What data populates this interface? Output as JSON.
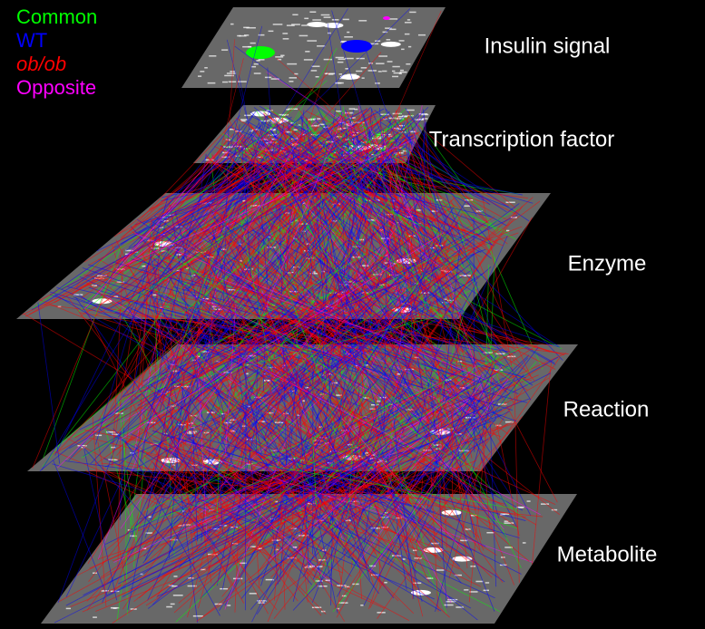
{
  "legend": {
    "items": [
      {
        "label": "Common",
        "color": "#00ff00"
      },
      {
        "label": "WT",
        "color": "#0000ff"
      },
      {
        "label": "ob/ob",
        "color": "#ff0000"
      },
      {
        "label": "Opposite",
        "color": "#ff00ff"
      }
    ]
  },
  "layers": [
    {
      "label": "Insulin signal"
    },
    {
      "label": "Transcription factor"
    },
    {
      "label": "Enzyme"
    },
    {
      "label": "Reaction"
    },
    {
      "label": "Metabolite"
    }
  ]
}
